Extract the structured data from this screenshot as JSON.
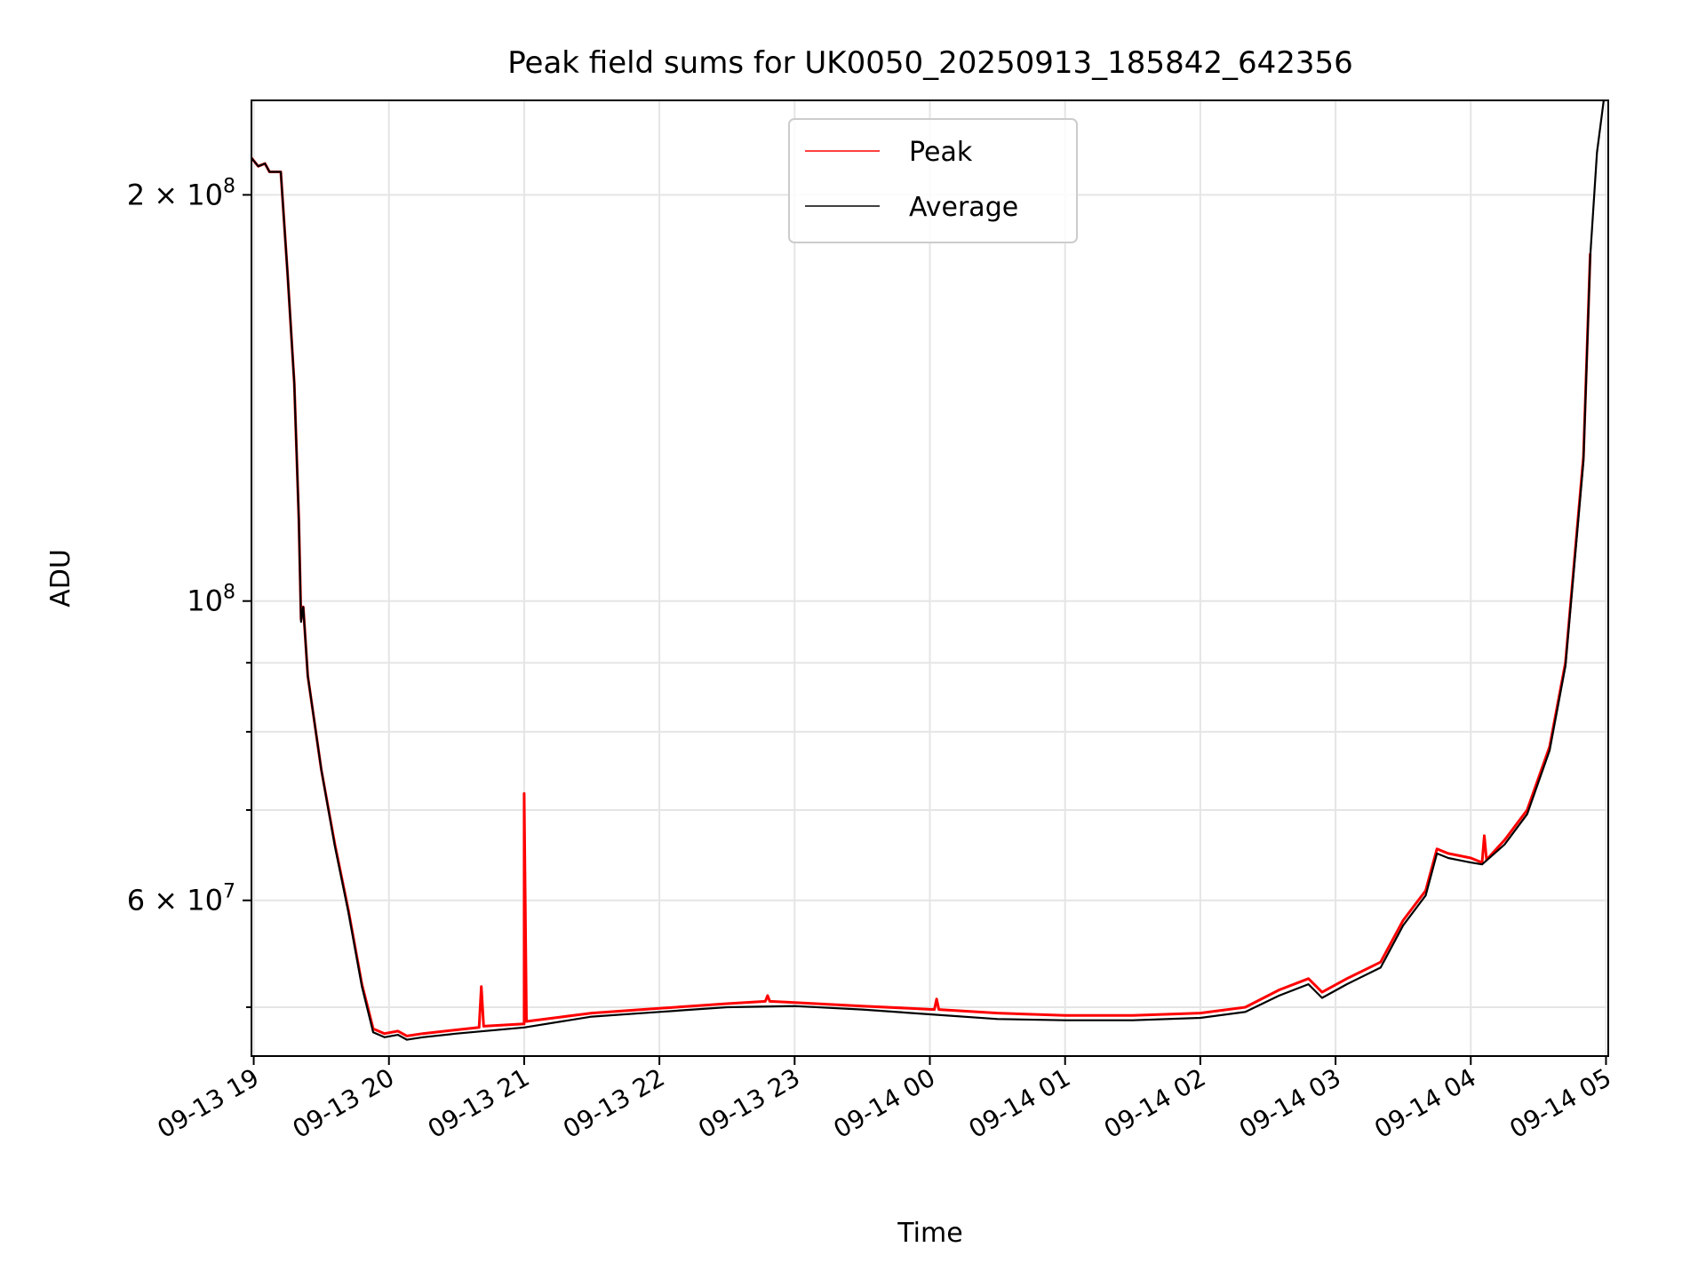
{
  "chart_data": {
    "type": "line",
    "title": "Peak field sums for UK0050_20250913_185842_642356",
    "xlabel": "Time",
    "ylabel": "ADU",
    "yscale": "log",
    "ylim": [
      46000000,
      235000000
    ],
    "xlim": [
      "2025-09-13 18:59",
      "2025-09-14 05:01"
    ],
    "grid": true,
    "legend_position": "top-center",
    "x_tick_labels": [
      "09-13 19",
      "09-13 20",
      "09-13 21",
      "09-13 22",
      "09-13 23",
      "09-14 00",
      "09-14 01",
      "09-14 02",
      "09-14 03",
      "09-14 04",
      "09-14 05"
    ],
    "x_tick_times": [
      "2025-09-13 19:00",
      "2025-09-13 20:00",
      "2025-09-13 21:00",
      "2025-09-13 22:00",
      "2025-09-13 23:00",
      "2025-09-14 00:00",
      "2025-09-14 01:00",
      "2025-09-14 02:00",
      "2025-09-14 03:00",
      "2025-09-14 04:00",
      "2025-09-14 05:00"
    ],
    "y_major_ticks": [
      {
        "value": 60000000,
        "mant": "6",
        "exp": "7"
      },
      {
        "value": 100000000,
        "mant": "",
        "exp": "8"
      },
      {
        "value": 200000000,
        "mant": "2",
        "exp": "8"
      }
    ],
    "y_minor_ticks": [
      50000000,
      70000000,
      80000000,
      90000000
    ],
    "series": [
      {
        "name": "Peak",
        "color": "#ff0000",
        "x": [
          "2025-09-13 18:59",
          "2025-09-13 19:02",
          "2025-09-13 19:05",
          "2025-09-13 19:07",
          "2025-09-13 19:12",
          "2025-09-13 19:15",
          "2025-09-13 19:18",
          "2025-09-13 19:20",
          "2025-09-13 19:21",
          "2025-09-13 19:22",
          "2025-09-13 19:24",
          "2025-09-13 19:30",
          "2025-09-13 19:36",
          "2025-09-13 19:42",
          "2025-09-13 19:48",
          "2025-09-13 19:53",
          "2025-09-13 19:58",
          "2025-09-13 20:04",
          "2025-09-13 20:08",
          "2025-09-13 20:15",
          "2025-09-13 20:30",
          "2025-09-13 20:40",
          "2025-09-13 20:41",
          "2025-09-13 20:42",
          "2025-09-13 21:00",
          "2025-09-13 21:00",
          "2025-09-13 21:01",
          "2025-09-13 21:30",
          "2025-09-13 22:00",
          "2025-09-13 22:30",
          "2025-09-13 22:47",
          "2025-09-13 22:48",
          "2025-09-13 22:49",
          "2025-09-13 23:00",
          "2025-09-13 23:30",
          "2025-09-14 00:02",
          "2025-09-14 00:03",
          "2025-09-14 00:04",
          "2025-09-14 00:30",
          "2025-09-14 01:00",
          "2025-09-14 01:30",
          "2025-09-14 02:00",
          "2025-09-14 02:20",
          "2025-09-14 02:35",
          "2025-09-14 02:48",
          "2025-09-14 02:54",
          "2025-09-14 03:05",
          "2025-09-14 03:20",
          "2025-09-14 03:30",
          "2025-09-14 03:40",
          "2025-09-14 03:45",
          "2025-09-14 03:50",
          "2025-09-14 04:00",
          "2025-09-14 04:05",
          "2025-09-14 04:06",
          "2025-09-14 04:07",
          "2025-09-14 04:15",
          "2025-09-14 04:25",
          "2025-09-14 04:35",
          "2025-09-14 04:42",
          "2025-09-14 04:50",
          "2025-09-14 04:53"
        ],
        "values": [
          213000000,
          210000000,
          211000000,
          208000000,
          208000000,
          175000000,
          145000000,
          115000000,
          97000000,
          99000000,
          88000000,
          75000000,
          66000000,
          59000000,
          52000000,
          48200000,
          47800000,
          48000000,
          47600000,
          47800000,
          48100000,
          48300000,
          51800000,
          48400000,
          48600000,
          72000000,
          48800000,
          49500000,
          49900000,
          50300000,
          50500000,
          51000000,
          50500000,
          50400000,
          50100000,
          49800000,
          50700000,
          49800000,
          49500000,
          49300000,
          49300000,
          49500000,
          50000000,
          51500000,
          52500000,
          51300000,
          52500000,
          54000000,
          58000000,
          61000000,
          65500000,
          65000000,
          64500000,
          64000000,
          67000000,
          64300000,
          66500000,
          70000000,
          78000000,
          90000000,
          128000000,
          181000000
        ]
      },
      {
        "name": "Average",
        "color": "#000000",
        "x": [
          "2025-09-13 18:59",
          "2025-09-13 19:02",
          "2025-09-13 19:05",
          "2025-09-13 19:07",
          "2025-09-13 19:12",
          "2025-09-13 19:15",
          "2025-09-13 19:18",
          "2025-09-13 19:20",
          "2025-09-13 19:21",
          "2025-09-13 19:22",
          "2025-09-13 19:24",
          "2025-09-13 19:30",
          "2025-09-13 19:36",
          "2025-09-13 19:42",
          "2025-09-13 19:48",
          "2025-09-13 19:53",
          "2025-09-13 19:58",
          "2025-09-13 20:04",
          "2025-09-13 20:08",
          "2025-09-13 20:15",
          "2025-09-13 20:30",
          "2025-09-13 21:00",
          "2025-09-13 21:30",
          "2025-09-13 22:00",
          "2025-09-13 22:30",
          "2025-09-13 23:00",
          "2025-09-13 23:30",
          "2025-09-14 00:00",
          "2025-09-14 00:30",
          "2025-09-14 01:00",
          "2025-09-14 01:30",
          "2025-09-14 02:00",
          "2025-09-14 02:20",
          "2025-09-14 02:35",
          "2025-09-14 02:48",
          "2025-09-14 02:54",
          "2025-09-14 03:05",
          "2025-09-14 03:20",
          "2025-09-14 03:30",
          "2025-09-14 03:40",
          "2025-09-14 03:45",
          "2025-09-14 03:50",
          "2025-09-14 04:00",
          "2025-09-14 04:05",
          "2025-09-14 04:15",
          "2025-09-14 04:25",
          "2025-09-14 04:35",
          "2025-09-14 04:42",
          "2025-09-14 04:50",
          "2025-09-14 04:53",
          "2025-09-14 04:56",
          "2025-09-14 04:59"
        ],
        "values": [
          213000000,
          210000000,
          211000000,
          208000000,
          208000000,
          175000000,
          145000000,
          115000000,
          96500000,
          99000000,
          88000000,
          75000000,
          65800000,
          58800000,
          51800000,
          47900000,
          47500000,
          47700000,
          47300000,
          47500000,
          47800000,
          48300000,
          49200000,
          49600000,
          50000000,
          50100000,
          49800000,
          49400000,
          49000000,
          48900000,
          48900000,
          49100000,
          49600000,
          51000000,
          52000000,
          50800000,
          52000000,
          53500000,
          57500000,
          60500000,
          65000000,
          64500000,
          64000000,
          63800000,
          66000000,
          69500000,
          77500000,
          89500000,
          127000000,
          180000000,
          215000000,
          235000000
        ]
      }
    ]
  }
}
